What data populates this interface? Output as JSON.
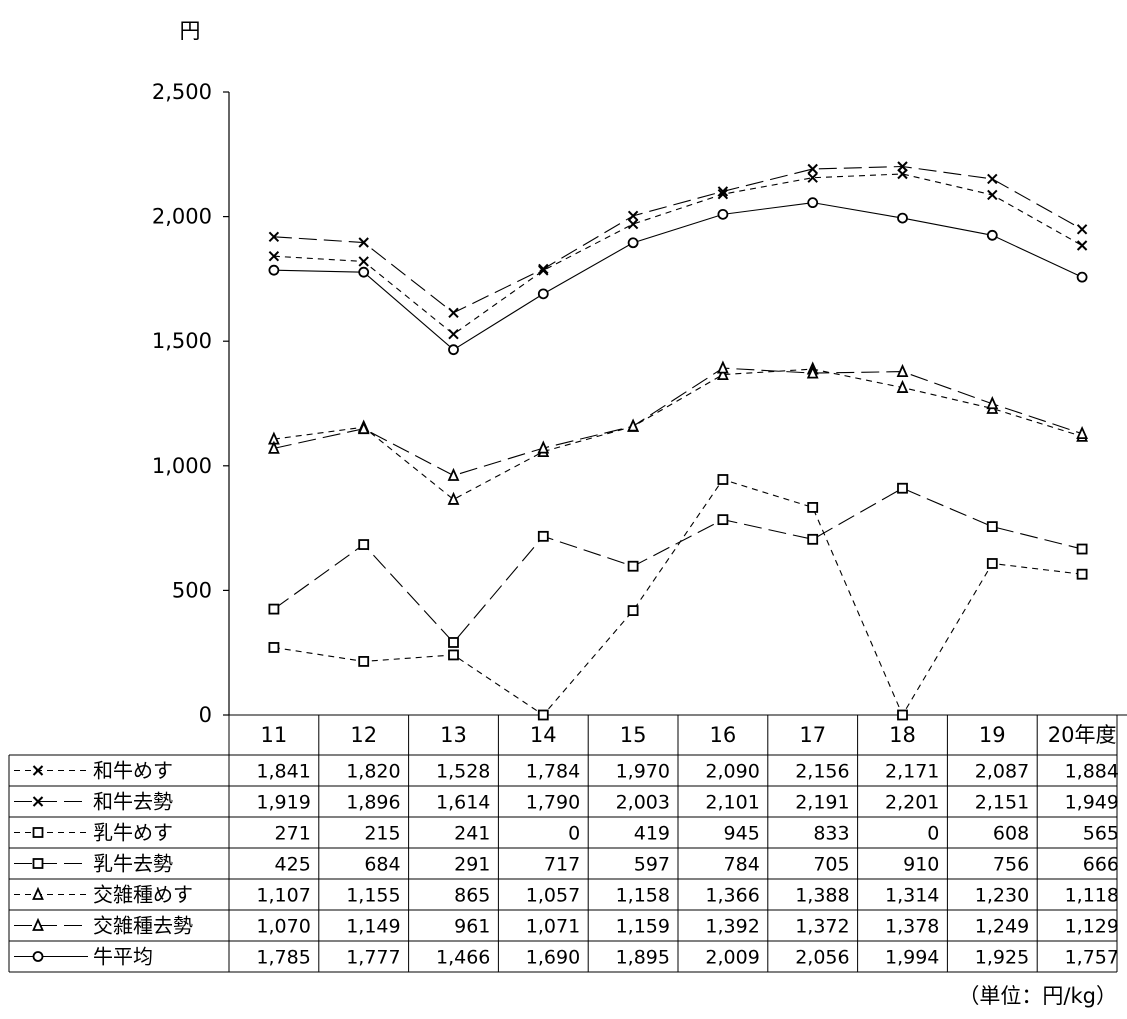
{
  "chart_data": {
    "type": "line",
    "ylabel": "円",
    "unit_note": "（単位：円/kg）",
    "ylim": [
      0,
      2500
    ],
    "y_ticks": [
      0,
      500,
      1000,
      1500,
      2000,
      2500
    ],
    "y_tick_labels": [
      "0",
      "500",
      "1,000",
      "1,500",
      "2,000",
      "2,500"
    ],
    "categories": [
      "11",
      "12",
      "13",
      "14",
      "15",
      "16",
      "17",
      "18",
      "19",
      "20年度"
    ],
    "grid": false,
    "legend": "table-left",
    "series": [
      {
        "name": "和牛めす",
        "marker": "x",
        "dash": "short",
        "color": "#000000",
        "values": [
          1841,
          1820,
          1528,
          1784,
          1970,
          2090,
          2156,
          2171,
          2087,
          1884
        ],
        "labels": [
          "1,841",
          "1,820",
          "1,528",
          "1,784",
          "1,970",
          "2,090",
          "2,156",
          "2,171",
          "2,087",
          "1,884"
        ]
      },
      {
        "name": "和牛去勢",
        "marker": "x",
        "dash": "long",
        "color": "#000000",
        "values": [
          1919,
          1896,
          1614,
          1790,
          2003,
          2101,
          2191,
          2201,
          2151,
          1949
        ],
        "labels": [
          "1,919",
          "1,896",
          "1,614",
          "1,790",
          "2,003",
          "2,101",
          "2,191",
          "2,201",
          "2,151",
          "1,949"
        ]
      },
      {
        "name": "乳牛めす",
        "marker": "square",
        "dash": "short",
        "color": "#000000",
        "values": [
          271,
          215,
          241,
          0,
          419,
          945,
          833,
          0,
          608,
          565
        ],
        "labels": [
          "271",
          "215",
          "241",
          "0",
          "419",
          "945",
          "833",
          "0",
          "608",
          "565"
        ]
      },
      {
        "name": "乳牛去勢",
        "marker": "square",
        "dash": "long",
        "color": "#000000",
        "values": [
          425,
          684,
          291,
          717,
          597,
          784,
          705,
          910,
          756,
          666
        ],
        "labels": [
          "425",
          "684",
          "291",
          "717",
          "597",
          "784",
          "705",
          "910",
          "756",
          "666"
        ]
      },
      {
        "name": "交雑種めす",
        "marker": "triangle",
        "dash": "short",
        "color": "#000000",
        "values": [
          1107,
          1155,
          865,
          1057,
          1158,
          1366,
          1388,
          1314,
          1230,
          1118
        ],
        "labels": [
          "1,107",
          "1,155",
          "865",
          "1,057",
          "1,158",
          "1,366",
          "1,388",
          "1,314",
          "1,230",
          "1,118"
        ]
      },
      {
        "name": "交雑種去勢",
        "marker": "triangle",
        "dash": "long",
        "color": "#000000",
        "values": [
          1070,
          1149,
          961,
          1071,
          1159,
          1392,
          1372,
          1378,
          1249,
          1129
        ],
        "labels": [
          "1,070",
          "1,149",
          "961",
          "1,071",
          "1,159",
          "1,392",
          "1,372",
          "1,378",
          "1,249",
          "1,129"
        ]
      },
      {
        "name": "牛平均",
        "marker": "circle",
        "dash": "solid",
        "color": "#000000",
        "values": [
          1785,
          1777,
          1466,
          1690,
          1895,
          2009,
          2056,
          1994,
          1925,
          1757
        ],
        "labels": [
          "1,785",
          "1,777",
          "1,466",
          "1,690",
          "1,895",
          "2,009",
          "2,056",
          "1,994",
          "1,925",
          "1,757"
        ]
      }
    ]
  }
}
